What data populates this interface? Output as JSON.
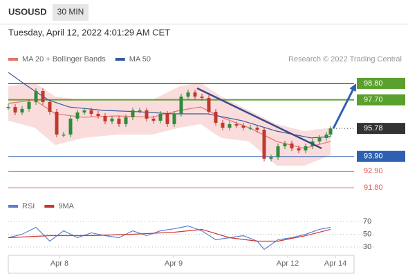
{
  "header": {
    "symbol": "USOUSD",
    "interval": "30 MIN",
    "datetime": "Tuesday, April 12, 2022 4:01:29 AM CET",
    "credit": "Research © 2022 Trading Central"
  },
  "chart_data": [
    {
      "type": "candlestick",
      "xlim": [
        0,
        100
      ],
      "ylim": [
        91.2,
        99.77
      ],
      "xticks": [
        {
          "value": 14.8,
          "label": "Apr 8"
        },
        {
          "value": 47.8,
          "label": "Apr 9"
        },
        {
          "value": 80.8,
          "label": "Apr 12"
        },
        {
          "value": 94.6,
          "label": "Apr 14"
        }
      ],
      "price": {
        "up_color": "#2e8b3a",
        "down_color": "#c0392b",
        "x": [
          0,
          2,
          4,
          6,
          8,
          10,
          12,
          14,
          16,
          18,
          20,
          22,
          24,
          26,
          28,
          30,
          32,
          34,
          36,
          38,
          40,
          42,
          44,
          46,
          48,
          50,
          52,
          54,
          56,
          58,
          60,
          62,
          64,
          66,
          68,
          70,
          72,
          74,
          76,
          78,
          80,
          82,
          84,
          86,
          88,
          90,
          92,
          93.2
        ],
        "values": [
          97.22,
          96.85,
          97.09,
          97.55,
          98.29,
          97.55,
          96.9,
          95.37,
          95.37,
          96.44,
          96.85,
          96.99,
          96.76,
          96.62,
          96.25,
          96.44,
          96.07,
          96.53,
          96.99,
          96.99,
          96.44,
          96.3,
          96.76,
          96.07,
          96.76,
          97.92,
          98.2,
          97.92,
          97.83,
          96.9,
          96.16,
          95.83,
          96.07,
          95.97,
          95.83,
          95.83,
          95.69,
          93.75,
          93.84,
          94.58,
          94.77,
          94.44,
          94.3,
          94.58,
          94.91,
          95.14,
          95.37,
          95.78
        ]
      },
      "series": [
        {
          "name": "MA 20 + Bollinger Bands",
          "color": "#e8736f",
          "band_color": "#fadcdc",
          "x": [
            0,
            7.6,
            13.6,
            21.6,
            31.6,
            41.6,
            49.6,
            55.6,
            61.6,
            69.6,
            77.6,
            85.6,
            93.2
          ],
          "values": [
            97.46,
            97.69,
            96.76,
            96.53,
            96.62,
            96.53,
            96.99,
            97.22,
            96.53,
            95.83,
            94.91,
            94.44,
            94.91
          ],
          "upper": [
            98.61,
            98.85,
            97.92,
            97.69,
            97.69,
            97.69,
            98.61,
            98.85,
            97.92,
            96.99,
            96.07,
            95.6,
            95.83
          ],
          "lower": [
            96.3,
            95.83,
            94.67,
            95.14,
            95.37,
            95.37,
            95.83,
            96.07,
            95.14,
            94.91,
            93.28,
            93.28,
            93.98
          ]
        },
        {
          "name": "MA 50",
          "color": "#3a5a9a",
          "x": [
            0,
            5.6,
            11.6,
            17.6,
            27.6,
            37.6,
            47.6,
            57.6,
            67.6,
            77.6,
            87.6,
            93.2
          ],
          "values": [
            99.54,
            98.61,
            97.69,
            97.22,
            96.99,
            96.9,
            96.76,
            96.76,
            96.3,
            95.6,
            95.14,
            95.23
          ]
        }
      ],
      "trendline": {
        "color": "#3a4a8a",
        "x": [
          54.6,
          90.6
        ],
        "values": [
          98.48,
          94.44
        ]
      },
      "arrow": {
        "color": "#2f5fb0",
        "x": [
          94,
          100.6
        ],
        "values": [
          95.78,
          98.8
        ]
      },
      "levels": [
        {
          "value": 98.8,
          "label": "98.80",
          "color": "#5aa02c",
          "style": "box"
        },
        {
          "value": 97.7,
          "label": "97.70",
          "color": "#5aa02c",
          "style": "box"
        },
        {
          "value": 95.78,
          "label": "95.78",
          "color": "#333333",
          "style": "current"
        },
        {
          "value": 93.9,
          "label": "93.90",
          "color": "#2f5fb0",
          "style": "box"
        },
        {
          "value": 92.9,
          "label": "92.90",
          "color": "#e05a4f",
          "style": "text"
        },
        {
          "value": 91.8,
          "label": "91.80",
          "color": "#e05a4f",
          "style": "text"
        }
      ]
    },
    {
      "type": "line",
      "xlim": [
        0,
        100
      ],
      "ylim": [
        17,
        76.5
      ],
      "yticks": [
        70,
        50,
        30
      ],
      "series": [
        {
          "name": "RSI",
          "color": "#5b7fd6",
          "x": [
            0,
            4,
            8,
            12,
            16,
            20,
            24,
            28,
            32,
            36,
            40,
            44,
            48,
            52,
            56,
            60,
            64,
            68,
            72,
            74,
            78,
            82,
            86,
            90,
            93.2
          ],
          "values": [
            44.6,
            50,
            60.8,
            39.2,
            55.4,
            44.6,
            52.2,
            47.8,
            44.6,
            55.4,
            47.8,
            55.4,
            58.6,
            63,
            55.4,
            41.4,
            44.6,
            47.8,
            39.2,
            26.2,
            41.4,
            44.6,
            50,
            57.6,
            60.8
          ]
        },
        {
          "name": "9MA",
          "color": "#d0342c",
          "x": [
            0,
            12,
            24,
            36,
            48,
            56,
            64,
            72,
            78,
            86,
            93.2
          ],
          "values": [
            44.6,
            47.8,
            47.8,
            50,
            53.2,
            57.6,
            44.6,
            39.2,
            39.2,
            47.8,
            57.6
          ]
        }
      ]
    }
  ]
}
